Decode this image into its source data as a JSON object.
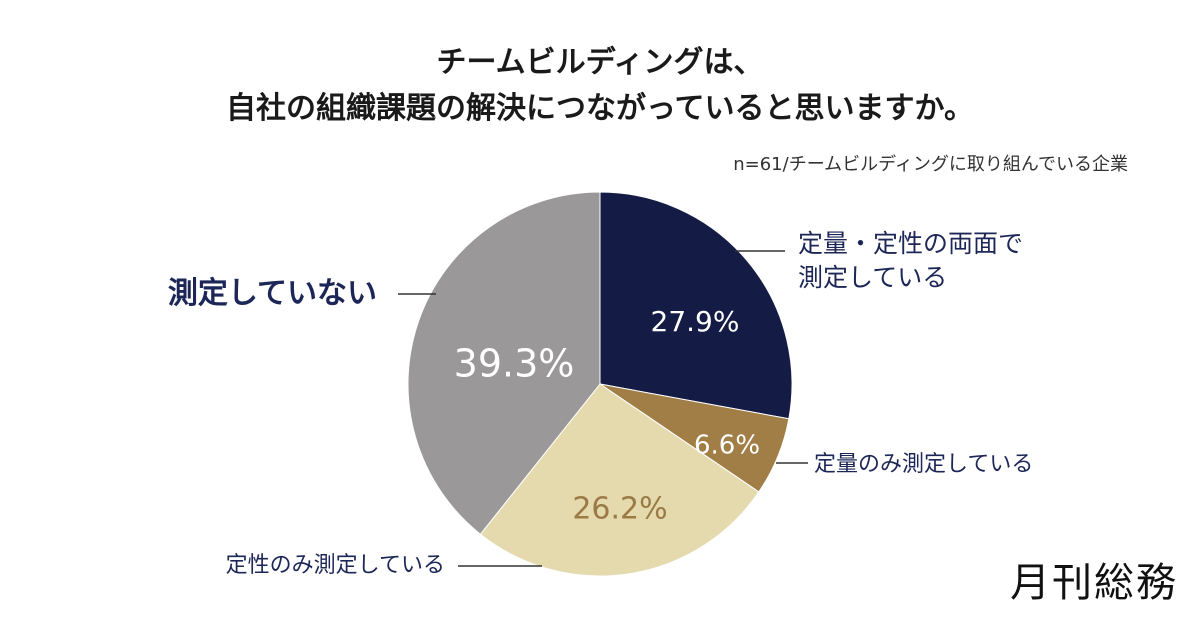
{
  "header": {
    "title_line1": "チームビルディングは、",
    "title_line2": "自社の組織課題の解決につながっていると思いますか。",
    "note": "n=61/チームビルディングに取り組んでいる企業"
  },
  "chart_data": {
    "type": "pie",
    "start_angle_deg": 0,
    "direction": "clockwise",
    "slices": [
      {
        "label_lines": [
          "定量・定性の両面で",
          "測定している"
        ],
        "value": 27.9,
        "value_label": "27.9%",
        "color": "#141c45",
        "value_text_color": "#ffffff"
      },
      {
        "label_lines": [
          "定量のみ測定している"
        ],
        "value": 6.6,
        "value_label": "6.6%",
        "color": "#a07e45",
        "value_text_color": "#ffffff"
      },
      {
        "label_lines": [
          "定性のみ測定している"
        ],
        "value": 26.2,
        "value_label": "26.2%",
        "color": "#e5d9ae",
        "value_text_color": "#9a7a45"
      },
      {
        "label_lines": [
          "測定していない"
        ],
        "value": 39.3,
        "value_label": "39.3%",
        "color": "#9a9898",
        "value_text_color": "#ffffff"
      }
    ]
  },
  "branding": {
    "logo_text": "月刊総務"
  }
}
